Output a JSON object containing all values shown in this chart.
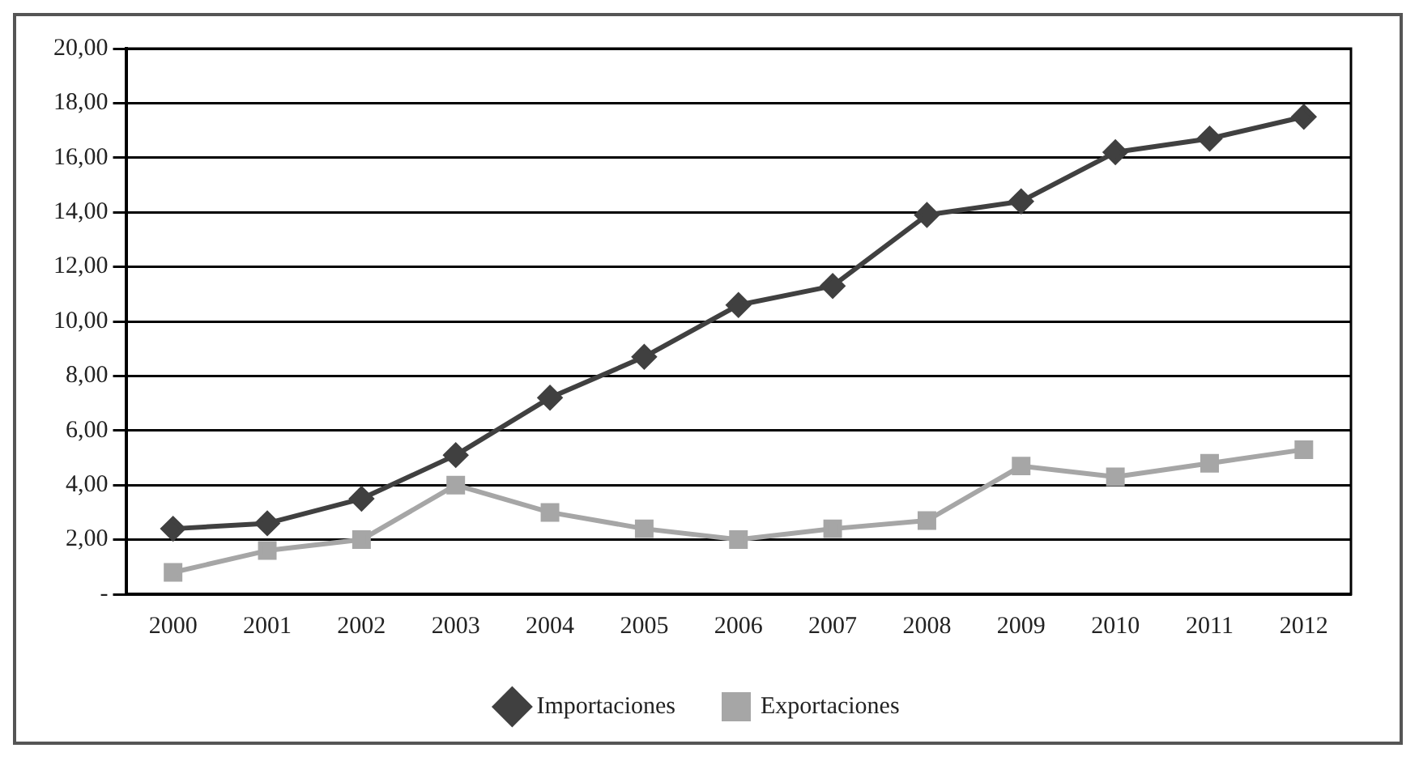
{
  "chart_data": {
    "type": "line",
    "categories": [
      "2000",
      "2001",
      "2002",
      "2003",
      "2004",
      "2005",
      "2006",
      "2007",
      "2008",
      "2009",
      "2010",
      "2011",
      "2012"
    ],
    "series": [
      {
        "name": "Importaciones",
        "color": "#404040",
        "marker": "diamond",
        "values": [
          2.4,
          2.6,
          3.5,
          5.1,
          7.2,
          8.7,
          10.6,
          11.3,
          13.9,
          14.4,
          16.2,
          16.7,
          17.5
        ]
      },
      {
        "name": "Exportaciones",
        "color": "#a6a6a6",
        "marker": "square",
        "values": [
          0.8,
          1.6,
          2.0,
          4.0,
          3.0,
          2.4,
          2.0,
          2.4,
          2.7,
          4.7,
          4.3,
          4.8,
          5.3
        ]
      }
    ],
    "ylim": [
      0,
      20
    ],
    "yticks": [
      {
        "value": 0,
        "label": "-"
      },
      {
        "value": 2,
        "label": "2,00"
      },
      {
        "value": 4,
        "label": "4,00"
      },
      {
        "value": 6,
        "label": "6,00"
      },
      {
        "value": 8,
        "label": "8,00"
      },
      {
        "value": 10,
        "label": "10,00"
      },
      {
        "value": 12,
        "label": "12,00"
      },
      {
        "value": 14,
        "label": "14,00"
      },
      {
        "value": 16,
        "label": "16,00"
      },
      {
        "value": 18,
        "label": "18,00"
      },
      {
        "value": 20,
        "label": "20,00"
      }
    ],
    "grid": "y",
    "legend": "bottom",
    "line_style": "solid"
  }
}
